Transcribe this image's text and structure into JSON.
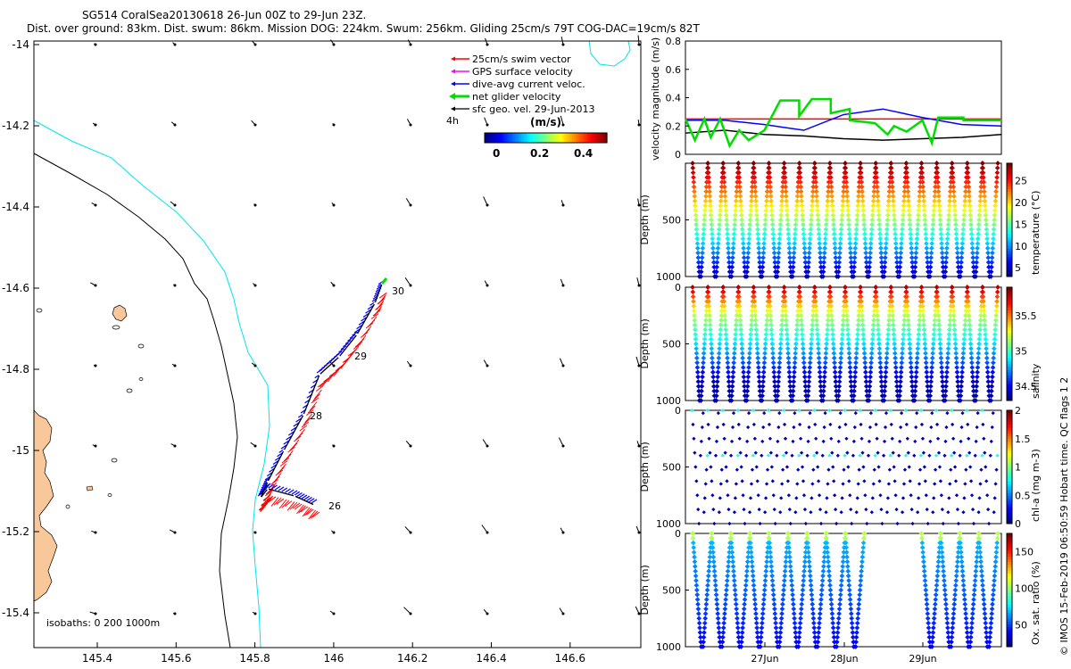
{
  "header": {
    "line1": "SG514 CoralSea20130618 26-Jun 00Z to 29-Jun 23Z.",
    "line2": "Dist. over ground: 83km. Dist. swum: 86km. Mission DOG: 224km. Swum: 256km. Gliding 25cm/s 79T COG-DAC=19cm/s 82T"
  },
  "credit": "© IMOS 15-Feb-2019 06:50:59 Hobart time. QC flags 1  2",
  "colors": {
    "land": "#f8c89b",
    "coast_contour": "#000000",
    "isobath_200": "#00e5ee",
    "isobath_1000": "#000000",
    "swim": "#ff0000",
    "gps": "#ff00ff",
    "dac": "#0000ff",
    "net": "#00dd00",
    "sfc": "#000000"
  },
  "map": {
    "legend": [
      {
        "label": "25cm/s swim vector",
        "color": "#ff0000"
      },
      {
        "label": "GPS surface velocity",
        "color": "#ff00ff"
      },
      {
        "label": "dive-avg current veloc.",
        "color": "#0000ff"
      },
      {
        "label": "net glider velocity",
        "color": "#00dd00"
      },
      {
        "label": "sfc geo. vel. 29-Jun-2013",
        "color": "#000000"
      }
    ],
    "ref_label": "4h",
    "colorbar": {
      "title": "(m/s)",
      "ticks": [
        "0",
        "0.2",
        "0.4"
      ],
      "range": [
        0,
        0.5
      ]
    },
    "isobath_label": "isobaths: 0   200  1000m",
    "day_labels": [
      "26",
      "28",
      "29",
      "30"
    ],
    "xticks": [
      "145.4",
      "145.6",
      "145.8",
      "146",
      "146.2",
      "146.4",
      "146.6"
    ],
    "yticks": [
      "-14",
      "-14.2",
      "-14.4",
      "-14.6",
      "-14.8",
      "-15",
      "-15.2",
      "-15.4"
    ]
  },
  "chart_data": [
    {
      "type": "line",
      "panel": "velocity",
      "ylabel": "velocity magnitude (m/s)",
      "ylim": [
        0,
        0.8
      ],
      "yticks": [
        "0",
        "0.2",
        "0.4",
        "0.6",
        "0.8"
      ],
      "xlim_days": [
        "26-Jun 00Z",
        "29-Jun 23Z"
      ],
      "series": [
        {
          "color": "#ff0000",
          "values": [
            0.25,
            0.25,
            0.25,
            0.25,
            0.25,
            0.25,
            0.25,
            0.25
          ]
        },
        {
          "color": "#0000ff",
          "values": [
            0.24,
            0.24,
            0.21,
            0.17,
            0.28,
            0.32,
            0.26,
            0.21,
            0.2
          ]
        },
        {
          "color": "#000000",
          "values": [
            0.15,
            0.17,
            0.14,
            0.13,
            0.11,
            0.1,
            0.11,
            0.12,
            0.14
          ]
        },
        {
          "color": "#00dd00",
          "values": [
            0.25,
            0.12,
            0.06,
            0.17,
            0.38,
            0.39,
            0.3,
            0.2,
            0.26,
            0.24
          ]
        }
      ]
    },
    {
      "type": "scatter",
      "panel": "temperature",
      "ylabel": "Depth (m)",
      "clabel": "temperature (°C)",
      "ylim": [
        1000,
        0
      ],
      "yticks": [
        "500",
        "1000"
      ],
      "cticks": [
        "5",
        "10",
        "15",
        "20",
        "25"
      ],
      "crange": [
        3,
        29
      ]
    },
    {
      "type": "scatter",
      "panel": "salinity",
      "ylabel": "Depth (m)",
      "clabel": "salinity",
      "ylim": [
        1000,
        0
      ],
      "yticks": [
        "0",
        "500",
        "1000"
      ],
      "cticks": [
        "34.5",
        "35",
        "35.5"
      ],
      "crange": [
        34.3,
        35.9
      ]
    },
    {
      "type": "scatter",
      "panel": "chla",
      "ylabel": "Depth (m)",
      "clabel": "chl-a (mg m-3)",
      "ylim": [
        1000,
        0
      ],
      "yticks": [
        "0",
        "500",
        "1000"
      ],
      "cticks": [
        "0",
        "0.5",
        "1",
        "1.5",
        "2"
      ],
      "crange": [
        0,
        2
      ]
    },
    {
      "type": "scatter",
      "panel": "oxygen",
      "ylabel": "Depth (m)",
      "clabel": "Ox. sat. ratio (%)",
      "ylim": [
        1000,
        0
      ],
      "yticks": [
        "0",
        "500",
        "1000"
      ],
      "cticks": [
        "50",
        "100",
        "150"
      ],
      "crange": [
        20,
        175
      ],
      "xticks": [
        "27Jun",
        "28Jun",
        "29Jun"
      ]
    }
  ]
}
